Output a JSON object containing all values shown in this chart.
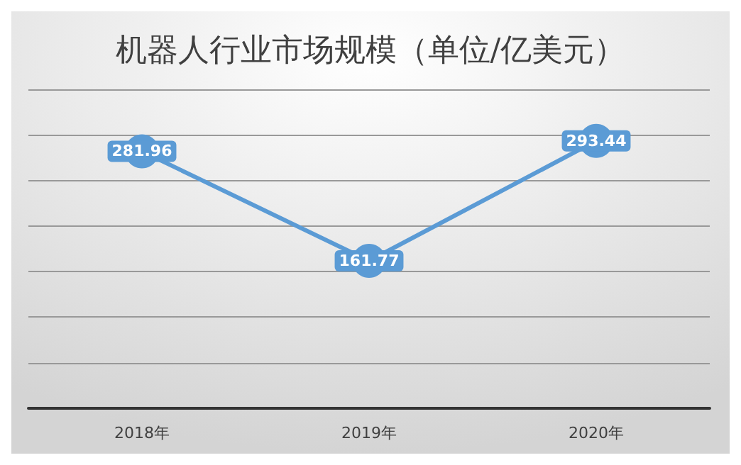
{
  "chart_data": {
    "type": "line",
    "title": "机器人行业市场规模（单位/亿美元）",
    "categories": [
      "2018年",
      "2019年",
      "2020年"
    ],
    "series": [
      {
        "color": "#5b9bd5",
        "values": [
          281.96,
          161.77,
          293.44
        ]
      }
    ],
    "ylim": [
      0,
      350
    ],
    "yticks": [
      {
        "value": 0,
        "label": null
      },
      {
        "value": 50,
        "label": null
      },
      {
        "value": 100,
        "label": null
      },
      {
        "value": 150,
        "label": null
      },
      {
        "value": 200,
        "label": null
      },
      {
        "value": 250,
        "label": null
      },
      {
        "value": 300,
        "label": null
      },
      {
        "value": 350,
        "label": null
      }
    ],
    "tick_labels": "x",
    "grid": "y",
    "marker": "circle",
    "line_style": "solid",
    "data_labels": true
  }
}
